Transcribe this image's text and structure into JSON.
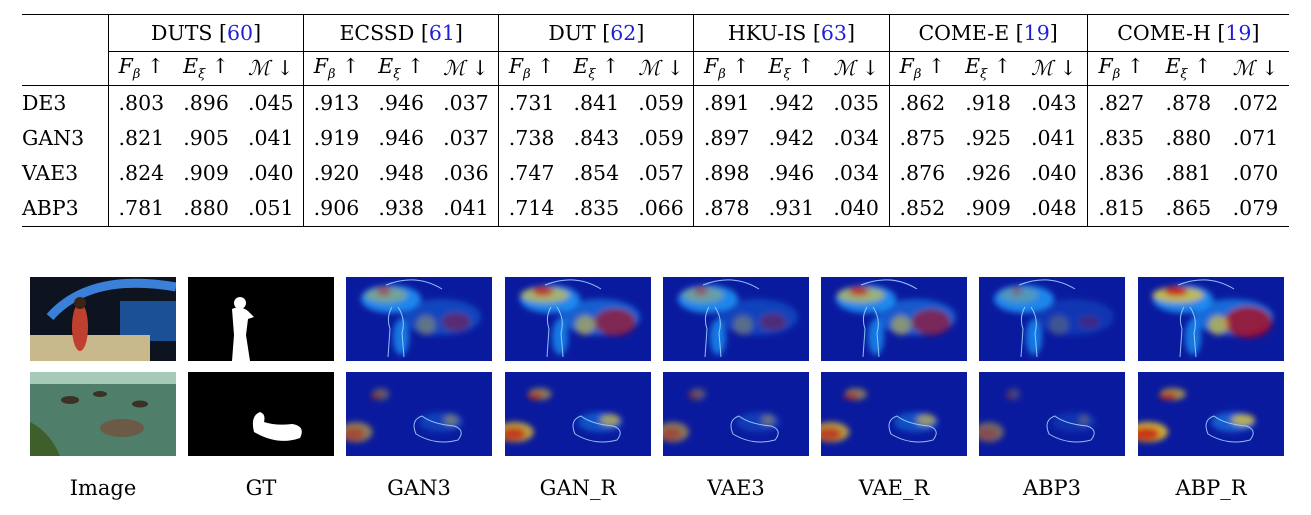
{
  "table": {
    "datasets": [
      {
        "name": "DUTS",
        "cite": "60"
      },
      {
        "name": "ECSSD",
        "cite": "61"
      },
      {
        "name": "DUT",
        "cite": "62"
      },
      {
        "name": "HKU-IS",
        "cite": "63"
      },
      {
        "name": "COME-E",
        "cite": "19"
      },
      {
        "name": "COME-H",
        "cite": "19"
      }
    ],
    "metrics": [
      {
        "symbol": "F",
        "sub": "β",
        "arrow": "↑"
      },
      {
        "symbol": "E",
        "sub": "ξ",
        "arrow": "↑"
      },
      {
        "symbol": "ℳ",
        "sub": "",
        "arrow": "↓"
      }
    ],
    "rows": [
      {
        "method": "DE3",
        "values": [
          ".803",
          ".896",
          ".045",
          ".913",
          ".946",
          ".037",
          ".731",
          ".841",
          ".059",
          ".891",
          ".942",
          ".035",
          ".862",
          ".918",
          ".043",
          ".827",
          ".878",
          ".072"
        ]
      },
      {
        "method": "GAN3",
        "values": [
          ".821",
          ".905",
          ".041",
          ".919",
          ".946",
          ".037",
          ".738",
          ".843",
          ".059",
          ".897",
          ".942",
          ".034",
          ".875",
          ".925",
          ".041",
          ".835",
          ".880",
          ".071"
        ]
      },
      {
        "method": "VAE3",
        "values": [
          ".824",
          ".909",
          ".040",
          ".920",
          ".948",
          ".036",
          ".747",
          ".854",
          ".057",
          ".898",
          ".946",
          ".034",
          ".876",
          ".926",
          ".040",
          ".836",
          ".881",
          ".070"
        ]
      },
      {
        "method": "ABP3",
        "values": [
          ".781",
          ".880",
          ".051",
          ".906",
          ".938",
          ".041",
          ".714",
          ".835",
          ".066",
          ".878",
          ".931",
          ".040",
          ".852",
          ".909",
          ".048",
          ".815",
          ".865",
          ".079"
        ]
      }
    ]
  },
  "figure": {
    "captions": [
      "Image",
      "GT",
      "GAN3",
      "GAN_R",
      "VAE3",
      "VAE_R",
      "ABP3",
      "ABP_R"
    ],
    "colors": {
      "heat_bg": "#0a1a9e",
      "heat_mid": "#1ea0ff",
      "heat_hot": "#ffd21f",
      "heat_max": "#c80000",
      "mask_fg": "#ffffff",
      "mask_bg": "#000000"
    }
  }
}
